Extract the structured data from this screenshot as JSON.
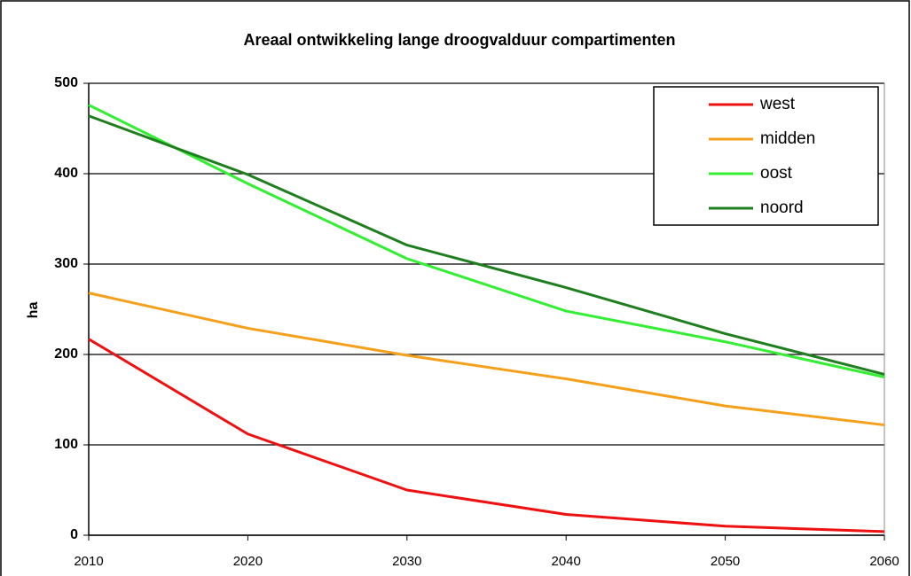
{
  "chart_data": {
    "type": "line",
    "title": "Areaal ontwikkeling lange droogvalduur compartimenten",
    "ylabel": "ha",
    "x": [
      2010,
      2020,
      2030,
      2040,
      2050,
      2060
    ],
    "xlim": [
      2010,
      2060
    ],
    "xticks": [
      2010,
      2020,
      2030,
      2040,
      2050,
      2060
    ],
    "ylim": [
      0,
      500
    ],
    "yticks": [
      0,
      100,
      200,
      300,
      400,
      500
    ],
    "grid": true,
    "legend": "upper right",
    "series": [
      {
        "name": "west",
        "color": "#ee1111",
        "values": [
          217,
          112,
          50,
          23,
          10,
          4
        ]
      },
      {
        "name": "midden",
        "color": "#f5a01a",
        "values": [
          268,
          229,
          199,
          173,
          143,
          122
        ]
      },
      {
        "name": "oost",
        "color": "#33ee33",
        "values": [
          476,
          389,
          306,
          248,
          214,
          175
        ]
      },
      {
        "name": "noord",
        "color": "#1f7f1f",
        "values": [
          464,
          399,
          321,
          274,
          223,
          178
        ]
      }
    ]
  }
}
